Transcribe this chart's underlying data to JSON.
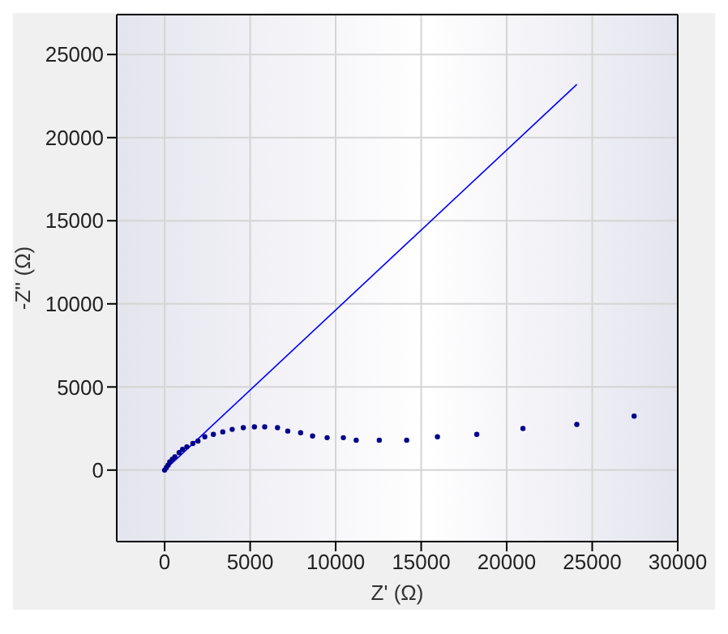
{
  "chart_data": {
    "type": "scatter",
    "xlabel": "Z' (Ω)",
    "ylabel": "-Z'' (Ω)",
    "xlim": [
      -2800,
      30000
    ],
    "xticks": [
      0,
      5000,
      10000,
      15000,
      20000,
      25000,
      30000
    ],
    "ylim": [
      -4300,
      27400
    ],
    "yticks": [
      0,
      5000,
      10000,
      15000,
      20000,
      25000
    ],
    "grid": true,
    "marker": "circle",
    "series": [
      {
        "color": "#00008b",
        "x": [
          0,
          100,
          200,
          300,
          450,
          600,
          850,
          1050,
          1300,
          1650,
          1950,
          2350,
          2850,
          3400,
          3950,
          4600,
          5250,
          5850,
          6600,
          7200,
          7950,
          8650,
          9500,
          10450,
          11200,
          12550,
          14150,
          15950,
          18250,
          20950,
          24100,
          27450
        ],
        "values": [
          0,
          150,
          300,
          500,
          650,
          800,
          1050,
          1250,
          1400,
          1600,
          1750,
          2000,
          2150,
          2300,
          2450,
          2550,
          2600,
          2600,
          2550,
          2350,
          2250,
          2050,
          1950,
          1950,
          1800,
          1800,
          1800,
          2000,
          2150,
          2500,
          2750,
          3250
        ]
      },
      {
        "type": "line",
        "color": "#0000ff",
        "marker": "none",
        "x": [
          0,
          24100
        ],
        "values": [
          0,
          23200
        ]
      }
    ]
  }
}
